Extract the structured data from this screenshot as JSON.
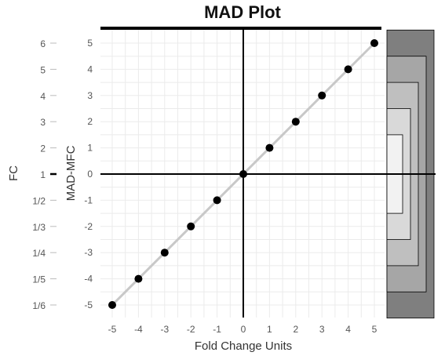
{
  "chart_data": {
    "type": "scatter",
    "title": "MAD Plot",
    "xlabel": "Fold Change Units",
    "ylabel": "MAD-MFC",
    "secondary_ylabel": "FC",
    "xlim": [
      -5,
      5
    ],
    "ylim": [
      -5,
      5
    ],
    "x_ticks": [
      "-5",
      "-4",
      "-3",
      "-2",
      "-1",
      "0",
      "1",
      "2",
      "3",
      "4",
      "5"
    ],
    "y_ticks": [
      "-5",
      "-4",
      "-3",
      "-2",
      "-1",
      "0",
      "1",
      "2",
      "3",
      "4",
      "5"
    ],
    "fc_ticks": [
      {
        "y": 5,
        "label": "6"
      },
      {
        "y": 4,
        "label": "5"
      },
      {
        "y": 3,
        "label": "4"
      },
      {
        "y": 2,
        "label": "3"
      },
      {
        "y": 1,
        "label": "2"
      },
      {
        "y": 0,
        "label": "1"
      },
      {
        "y": -1,
        "label": "1/2"
      },
      {
        "y": -2,
        "label": "1/3"
      },
      {
        "y": -3,
        "label": "1/4"
      },
      {
        "y": -4,
        "label": "1/5"
      },
      {
        "y": -5,
        "label": "1/6"
      }
    ],
    "grid": true,
    "points": [
      {
        "x": -5,
        "y": -5
      },
      {
        "x": -4,
        "y": -4
      },
      {
        "x": -3,
        "y": -3
      },
      {
        "x": -2,
        "y": -2
      },
      {
        "x": -1,
        "y": -1
      },
      {
        "x": 0,
        "y": 0
      },
      {
        "x": 1,
        "y": 1
      },
      {
        "x": 2,
        "y": 2
      },
      {
        "x": 3,
        "y": 3
      },
      {
        "x": 4,
        "y": 4
      },
      {
        "x": 5,
        "y": 5
      }
    ],
    "reference_line": {
      "from": [
        -5,
        -5
      ],
      "to": [
        5,
        5
      ],
      "color": "#c8c8c8"
    },
    "nested_boxes": [
      {
        "half_range": 5,
        "color": "#7f7f7f"
      },
      {
        "half_range": 4,
        "color": "#a6a6a6"
      },
      {
        "half_range": 3,
        "color": "#bfbfbf"
      },
      {
        "half_range": 2,
        "color": "#d9d9d9"
      },
      {
        "half_range": 1,
        "color": "#f2f2f2"
      }
    ],
    "colors": {
      "point": "#000000",
      "grid": "#ebebeb",
      "axis": "#000000"
    }
  }
}
